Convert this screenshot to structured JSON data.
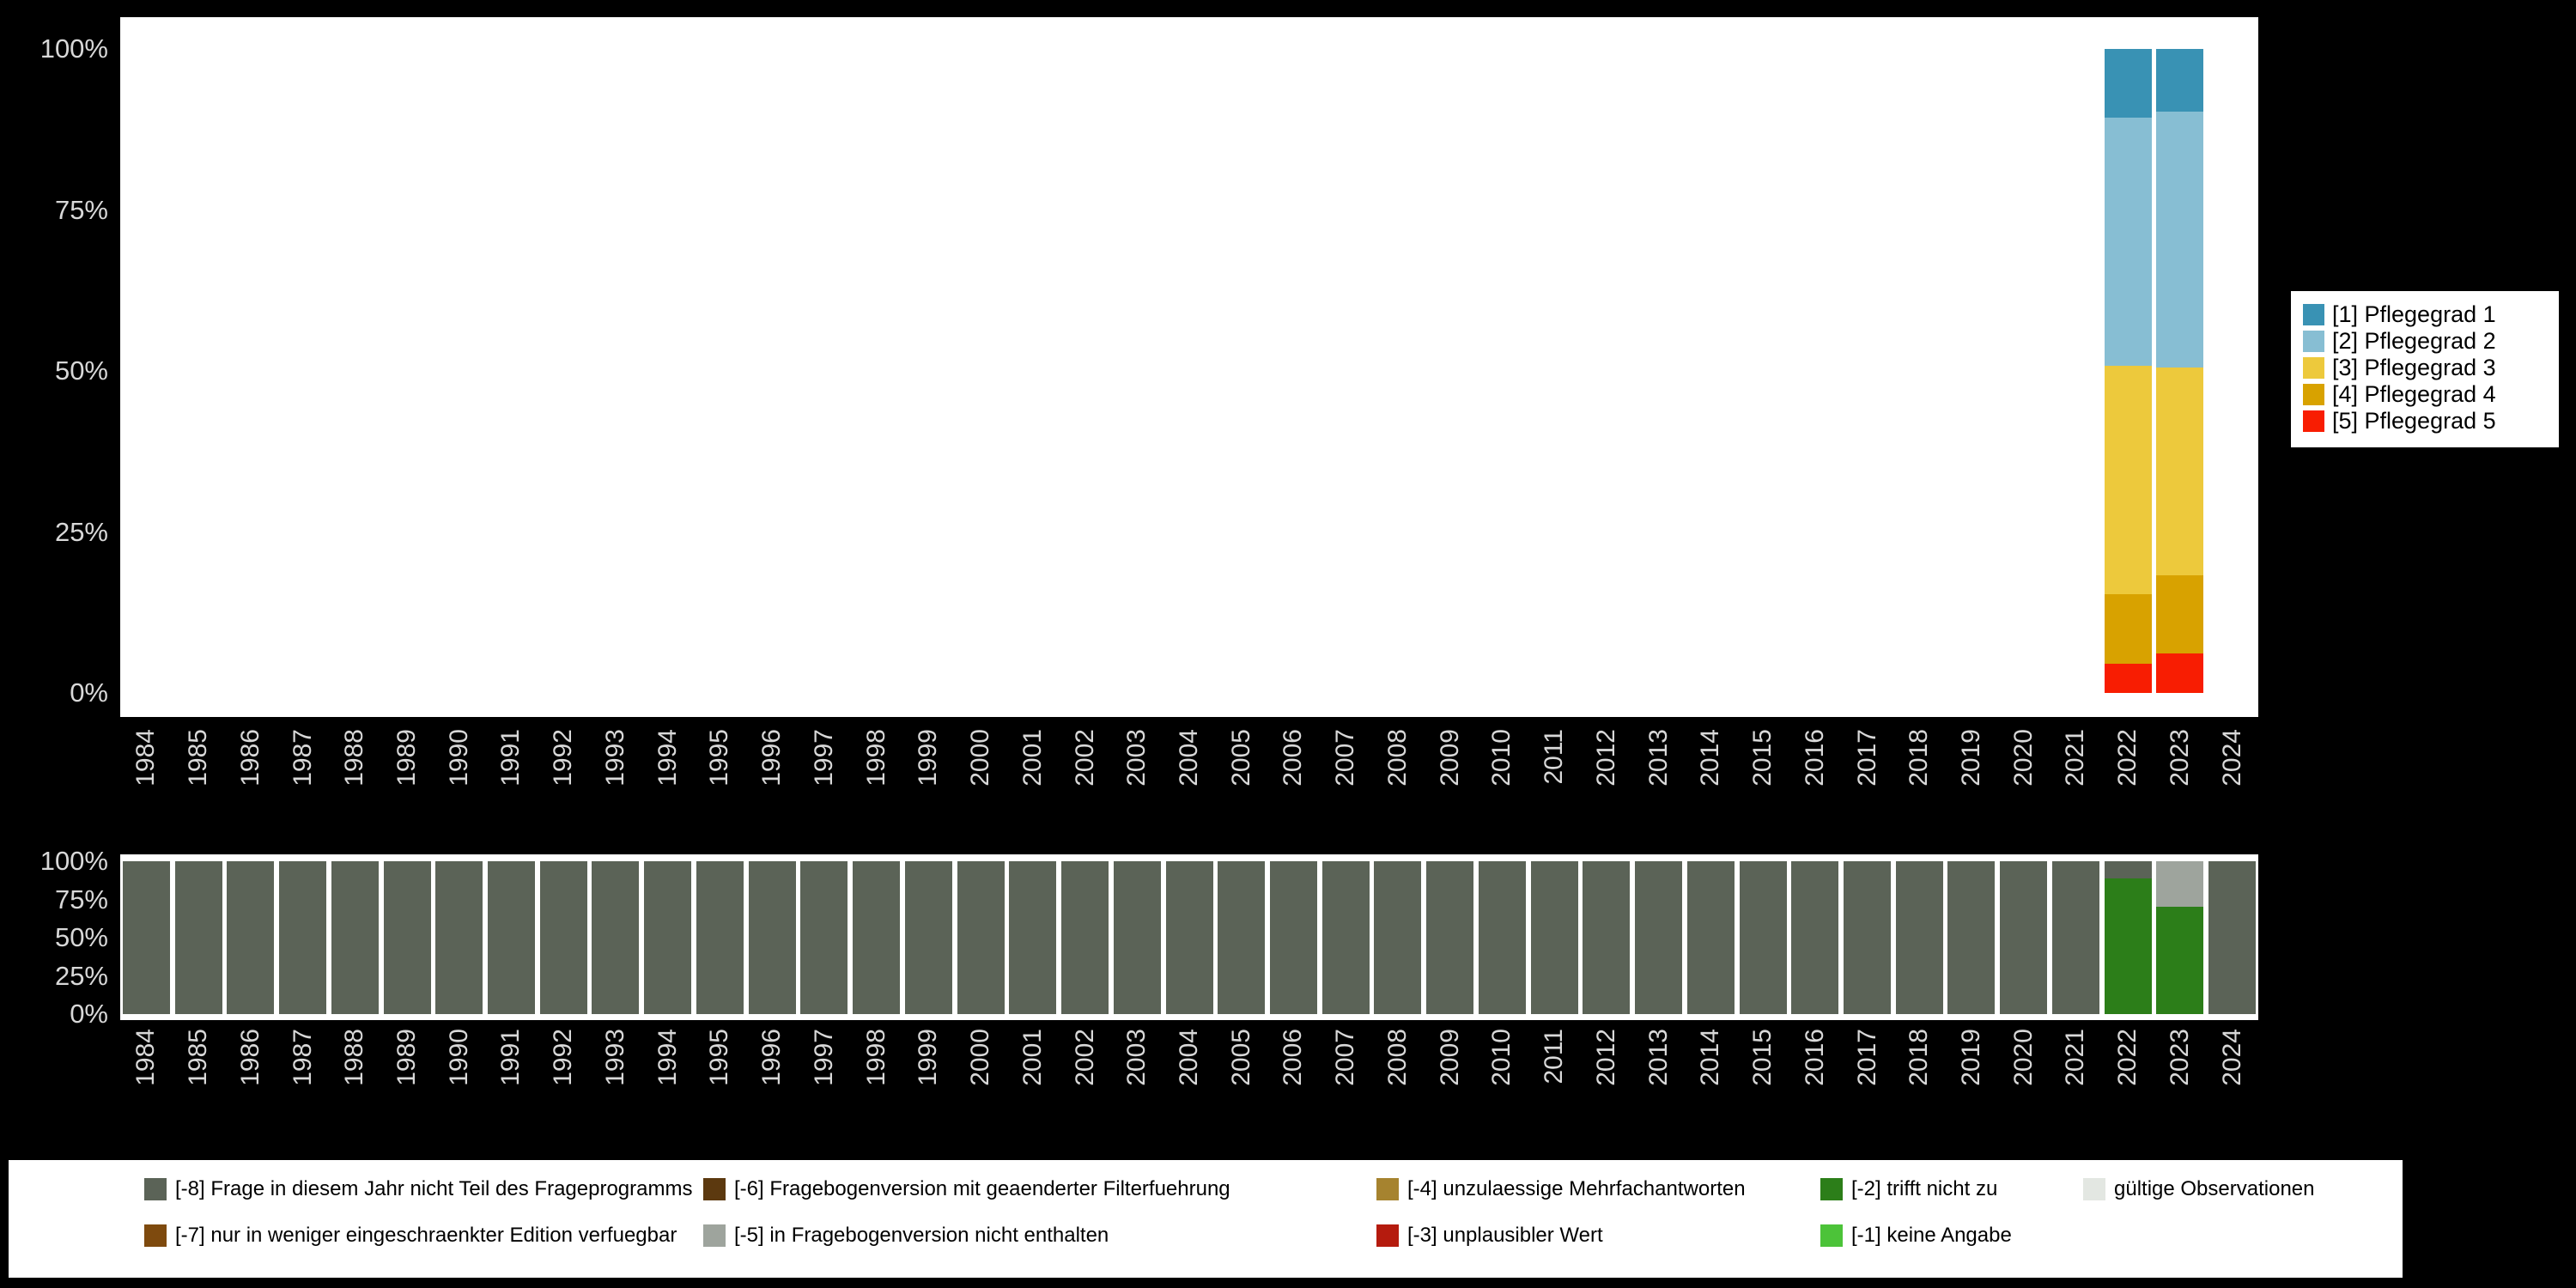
{
  "page": {
    "background": "#000000",
    "plot_background": "#ffffff",
    "axis_text_color": "#d8d8d8"
  },
  "years": [
    "1984",
    "1985",
    "1986",
    "1987",
    "1988",
    "1989",
    "1990",
    "1991",
    "1992",
    "1993",
    "1994",
    "1995",
    "1996",
    "1997",
    "1998",
    "1999",
    "2000",
    "2001",
    "2002",
    "2003",
    "2004",
    "2005",
    "2006",
    "2007",
    "2008",
    "2009",
    "2010",
    "2011",
    "2012",
    "2013",
    "2014",
    "2015",
    "2016",
    "2017",
    "2018",
    "2019",
    "2020",
    "2021",
    "2022",
    "2023",
    "2024"
  ],
  "ytick_labels_top_down": [
    "100%",
    "75%",
    "50%",
    "25%",
    "0%"
  ],
  "chart_data": [
    {
      "type": "bar",
      "stacked": true,
      "values_are": "percent",
      "x": "years",
      "ylim": [
        0,
        100
      ],
      "ytick_labels": [
        "0%",
        "25%",
        "50%",
        "75%",
        "100%"
      ],
      "legend_position": "right",
      "series": [
        {
          "name": "[1] Pflegegrad 1",
          "color": "#3992b4",
          "values_by_year": {
            "2022": 10.7,
            "2023": 9.7
          }
        },
        {
          "name": "[2] Pflegegrad 2",
          "color": "#87bed3",
          "values_by_year": {
            "2022": 38.5,
            "2023": 39.8
          }
        },
        {
          "name": "[3] Pflegegrad 3",
          "color": "#edc93c",
          "values_by_year": {
            "2022": 35.5,
            "2023": 32.2
          }
        },
        {
          "name": "[4] Pflegegrad 4",
          "color": "#d8a200",
          "values_by_year": {
            "2022": 10.8,
            "2023": 12.2
          }
        },
        {
          "name": "[5] Pflegegrad 5",
          "color": "#f81d02",
          "values_by_year": {
            "2022": 4.5,
            "2023": 6.1
          }
        }
      ]
    },
    {
      "type": "bar",
      "stacked": true,
      "values_are": "percent",
      "x": "years",
      "ylim": [
        0,
        100
      ],
      "ytick_labels": [
        "0%",
        "25%",
        "50%",
        "75%",
        "100%"
      ],
      "series": [
        {
          "code": "-8",
          "default": 100,
          "values_by_year": {
            "2022": 11,
            "2023": 0
          }
        },
        {
          "code": "-7",
          "default": 0
        },
        {
          "code": "-6",
          "default": 0
        },
        {
          "code": "-5",
          "default": 0,
          "values_by_year": {
            "2023": 30
          }
        },
        {
          "code": "-4",
          "default": 0
        },
        {
          "code": "-3",
          "default": 0
        },
        {
          "code": "-2",
          "default": 0,
          "values_by_year": {
            "2022": 89,
            "2023": 70
          }
        },
        {
          "code": "-1",
          "default": 0
        },
        {
          "code": "valid",
          "default": 0
        }
      ]
    }
  ],
  "missing_codes": {
    "-8": {
      "label": "[-8] Frage in diesem Jahr nicht Teil des Frageprogramms",
      "color": "#5b6357"
    },
    "-7": {
      "label": "[-7] nur in weniger eingeschraenkter Edition verfuegbar",
      "color": "#7e4a0e"
    },
    "-6": {
      "label": "[-6] Fragebogenversion mit geaenderter Filterfuehrung",
      "color": "#5c390f"
    },
    "-5": {
      "label": "[-5] in Fragebogenversion nicht enthalten",
      "color": "#9ea49d"
    },
    "-4": {
      "label": "[-4] unzulaessige Mehrfachantworten",
      "color": "#a6832f"
    },
    "-3": {
      "label": "[-3] unplausibler Wert",
      "color": "#b51b0e"
    },
    "-2": {
      "label": "[-2] trifft nicht zu",
      "color": "#2c7e19"
    },
    "-1": {
      "label": "[-1] keine Angabe",
      "color": "#4cc339"
    },
    "valid": {
      "label": "gültige Observationen",
      "color": "#e3e7e2"
    }
  },
  "legend_missing_columns": [
    [
      "-8",
      "-7"
    ],
    [
      "-6",
      "-5"
    ],
    [
      "-4",
      "-3"
    ],
    [
      "-2",
      "-1"
    ],
    [
      "valid"
    ]
  ]
}
